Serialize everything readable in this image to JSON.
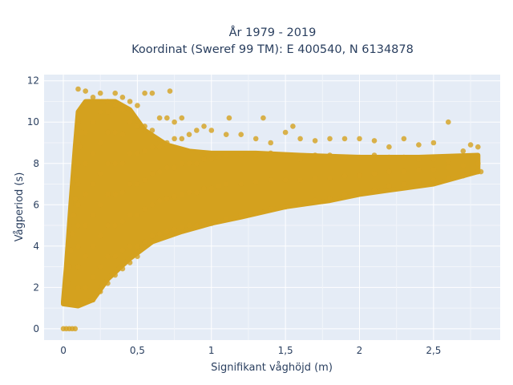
{
  "chart_data": {
    "type": "scatter",
    "title_lines": [
      "År 1979 - 2019",
      "Koordinat (Sweref 99 TM): E 400540, N 6134878"
    ],
    "xlabel": "Signifikant våghöjd (m)",
    "ylabel": "Vågperiod (s)",
    "x_ticks": [
      {
        "value": 0,
        "label": "0"
      },
      {
        "value": 0.5,
        "label": "0,5"
      },
      {
        "value": 1,
        "label": "1"
      },
      {
        "value": 1.5,
        "label": "1,5"
      },
      {
        "value": 2,
        "label": "2"
      },
      {
        "value": 2.5,
        "label": "2,5"
      }
    ],
    "y_ticks": [
      {
        "value": 0,
        "label": "0"
      },
      {
        "value": 2,
        "label": "2"
      },
      {
        "value": 4,
        "label": "4"
      },
      {
        "value": 6,
        "label": "6"
      },
      {
        "value": 8,
        "label": "8"
      },
      {
        "value": 10,
        "label": "10"
      },
      {
        "value": 12,
        "label": "12"
      }
    ],
    "xlim": [
      -0.13,
      2.95
    ],
    "ylim": [
      -0.55,
      12.3
    ],
    "grid": true,
    "background": "#e5ecf6",
    "marker_color": "#d4a11e",
    "points": [
      [
        0.0,
        0.0
      ],
      [
        0.02,
        0.0
      ],
      [
        0.04,
        0.0
      ],
      [
        0.06,
        0.0
      ],
      [
        0.08,
        0.0
      ],
      [
        0.02,
        1.4
      ],
      [
        0.03,
        2.2
      ],
      [
        0.04,
        3.0
      ],
      [
        0.05,
        3.8
      ],
      [
        0.06,
        4.6
      ],
      [
        0.07,
        5.5
      ],
      [
        0.08,
        6.3
      ],
      [
        0.09,
        7.2
      ],
      [
        0.1,
        8.0
      ],
      [
        0.11,
        8.8
      ],
      [
        0.12,
        9.5
      ],
      [
        0.05,
        1.3
      ],
      [
        0.1,
        1.2
      ],
      [
        0.15,
        1.3
      ],
      [
        0.2,
        1.4
      ],
      [
        0.25,
        1.8
      ],
      [
        0.3,
        2.2
      ],
      [
        0.35,
        2.6
      ],
      [
        0.4,
        2.9
      ],
      [
        0.45,
        3.2
      ],
      [
        0.5,
        3.5
      ],
      [
        0.1,
        2.0
      ],
      [
        0.1,
        3.0
      ],
      [
        0.1,
        4.0
      ],
      [
        0.1,
        5.0
      ],
      [
        0.1,
        6.0
      ],
      [
        0.1,
        7.0
      ],
      [
        0.1,
        9.0
      ],
      [
        0.1,
        10.0
      ],
      [
        0.1,
        11.6
      ],
      [
        0.15,
        2.0
      ],
      [
        0.15,
        3.5
      ],
      [
        0.15,
        5.0
      ],
      [
        0.15,
        6.5
      ],
      [
        0.15,
        8.0
      ],
      [
        0.15,
        9.5
      ],
      [
        0.15,
        10.8
      ],
      [
        0.15,
        11.5
      ],
      [
        0.2,
        2.5
      ],
      [
        0.2,
        4.0
      ],
      [
        0.2,
        5.5
      ],
      [
        0.2,
        7.0
      ],
      [
        0.2,
        8.5
      ],
      [
        0.2,
        10.0
      ],
      [
        0.2,
        11.2
      ],
      [
        0.25,
        3.0
      ],
      [
        0.25,
        4.5
      ],
      [
        0.25,
        6.0
      ],
      [
        0.25,
        7.5
      ],
      [
        0.25,
        9.0
      ],
      [
        0.25,
        10.5
      ],
      [
        0.25,
        11.4
      ],
      [
        0.3,
        3.5
      ],
      [
        0.3,
        5.0
      ],
      [
        0.3,
        6.5
      ],
      [
        0.3,
        8.0
      ],
      [
        0.3,
        9.5
      ],
      [
        0.3,
        10.5
      ],
      [
        0.3,
        11.0
      ],
      [
        0.35,
        3.5
      ],
      [
        0.35,
        5.0
      ],
      [
        0.35,
        6.5
      ],
      [
        0.35,
        8.0
      ],
      [
        0.35,
        9.5
      ],
      [
        0.35,
        10.8
      ],
      [
        0.35,
        11.4
      ],
      [
        0.4,
        3.8
      ],
      [
        0.4,
        5.2
      ],
      [
        0.4,
        6.6
      ],
      [
        0.4,
        8.0
      ],
      [
        0.4,
        9.4
      ],
      [
        0.4,
        10.6
      ],
      [
        0.4,
        11.2
      ],
      [
        0.45,
        4.0
      ],
      [
        0.45,
        5.5
      ],
      [
        0.45,
        7.0
      ],
      [
        0.45,
        8.5
      ],
      [
        0.45,
        10.0
      ],
      [
        0.45,
        11.0
      ],
      [
        0.5,
        4.0
      ],
      [
        0.5,
        5.5
      ],
      [
        0.5,
        7.0
      ],
      [
        0.5,
        8.5
      ],
      [
        0.5,
        9.8
      ],
      [
        0.5,
        10.8
      ],
      [
        0.55,
        4.2
      ],
      [
        0.55,
        5.8
      ],
      [
        0.55,
        7.2
      ],
      [
        0.55,
        8.6
      ],
      [
        0.55,
        9.8
      ],
      [
        0.55,
        11.4
      ],
      [
        0.6,
        4.5
      ],
      [
        0.6,
        6.0
      ],
      [
        0.6,
        7.5
      ],
      [
        0.6,
        8.8
      ],
      [
        0.6,
        9.6
      ],
      [
        0.6,
        11.4
      ],
      [
        0.65,
        4.6
      ],
      [
        0.65,
        6.2
      ],
      [
        0.65,
        7.6
      ],
      [
        0.65,
        8.8
      ],
      [
        0.65,
        10.2
      ],
      [
        0.7,
        4.7
      ],
      [
        0.7,
        6.3
      ],
      [
        0.7,
        7.8
      ],
      [
        0.7,
        9.0
      ],
      [
        0.7,
        10.2
      ],
      [
        0.72,
        11.5
      ],
      [
        0.75,
        4.8
      ],
      [
        0.75,
        6.4
      ],
      [
        0.75,
        7.8
      ],
      [
        0.75,
        9.2
      ],
      [
        0.75,
        10.0
      ],
      [
        0.8,
        4.9
      ],
      [
        0.8,
        6.5
      ],
      [
        0.8,
        8.0
      ],
      [
        0.8,
        9.2
      ],
      [
        0.8,
        10.2
      ],
      [
        0.85,
        5.0
      ],
      [
        0.85,
        6.6
      ],
      [
        0.85,
        8.0
      ],
      [
        0.85,
        9.4
      ],
      [
        0.9,
        5.0
      ],
      [
        0.9,
        6.6
      ],
      [
        0.9,
        8.0
      ],
      [
        0.9,
        9.6
      ],
      [
        0.95,
        5.1
      ],
      [
        0.95,
        6.8
      ],
      [
        0.95,
        8.2
      ],
      [
        0.95,
        9.8
      ],
      [
        1.0,
        5.1
      ],
      [
        1.0,
        6.8
      ],
      [
        1.0,
        8.2
      ],
      [
        1.0,
        9.6
      ],
      [
        1.05,
        5.2
      ],
      [
        1.05,
        6.9
      ],
      [
        1.05,
        8.3
      ],
      [
        1.1,
        5.3
      ],
      [
        1.1,
        7.0
      ],
      [
        1.1,
        8.4
      ],
      [
        1.1,
        9.4
      ],
      [
        1.12,
        10.2
      ],
      [
        1.2,
        5.5
      ],
      [
        1.2,
        7.0
      ],
      [
        1.2,
        8.4
      ],
      [
        1.2,
        9.4
      ],
      [
        1.3,
        5.6
      ],
      [
        1.3,
        7.1
      ],
      [
        1.3,
        8.4
      ],
      [
        1.3,
        9.2
      ],
      [
        1.35,
        10.2
      ],
      [
        1.4,
        5.8
      ],
      [
        1.4,
        7.2
      ],
      [
        1.4,
        8.5
      ],
      [
        1.4,
        9.0
      ],
      [
        1.5,
        5.9
      ],
      [
        1.5,
        7.2
      ],
      [
        1.5,
        8.4
      ],
      [
        1.5,
        9.5
      ],
      [
        1.55,
        9.8
      ],
      [
        1.6,
        6.1
      ],
      [
        1.6,
        7.2
      ],
      [
        1.6,
        8.2
      ],
      [
        1.6,
        9.2
      ],
      [
        1.7,
        6.2
      ],
      [
        1.7,
        7.3
      ],
      [
        1.7,
        8.4
      ],
      [
        1.7,
        9.1
      ],
      [
        1.8,
        6.3
      ],
      [
        1.8,
        7.3
      ],
      [
        1.8,
        8.4
      ],
      [
        1.8,
        9.2
      ],
      [
        1.9,
        6.5
      ],
      [
        1.9,
        7.4
      ],
      [
        1.9,
        8.3
      ],
      [
        1.9,
        9.2
      ],
      [
        2.0,
        6.6
      ],
      [
        2.0,
        7.4
      ],
      [
        2.0,
        8.3
      ],
      [
        2.0,
        9.2
      ],
      [
        2.1,
        6.7
      ],
      [
        2.1,
        7.5
      ],
      [
        2.1,
        8.4
      ],
      [
        2.1,
        9.1
      ],
      [
        2.2,
        6.9
      ],
      [
        2.2,
        7.6
      ],
      [
        2.2,
        8.3
      ],
      [
        2.2,
        8.8
      ],
      [
        2.3,
        7.0
      ],
      [
        2.3,
        7.6
      ],
      [
        2.3,
        8.3
      ],
      [
        2.3,
        9.2
      ],
      [
        2.4,
        7.1
      ],
      [
        2.4,
        7.7
      ],
      [
        2.4,
        8.2
      ],
      [
        2.4,
        8.9
      ],
      [
        2.5,
        7.2
      ],
      [
        2.5,
        7.7
      ],
      [
        2.5,
        8.2
      ],
      [
        2.5,
        9.0
      ],
      [
        2.6,
        7.3
      ],
      [
        2.6,
        7.8
      ],
      [
        2.6,
        8.1
      ],
      [
        2.6,
        10.0
      ],
      [
        2.7,
        7.4
      ],
      [
        2.7,
        7.9
      ],
      [
        2.7,
        8.6
      ],
      [
        2.75,
        8.9
      ],
      [
        2.8,
        7.6
      ],
      [
        2.8,
        8.0
      ],
      [
        2.8,
        8.8
      ],
      [
        2.82,
        7.6
      ]
    ]
  }
}
